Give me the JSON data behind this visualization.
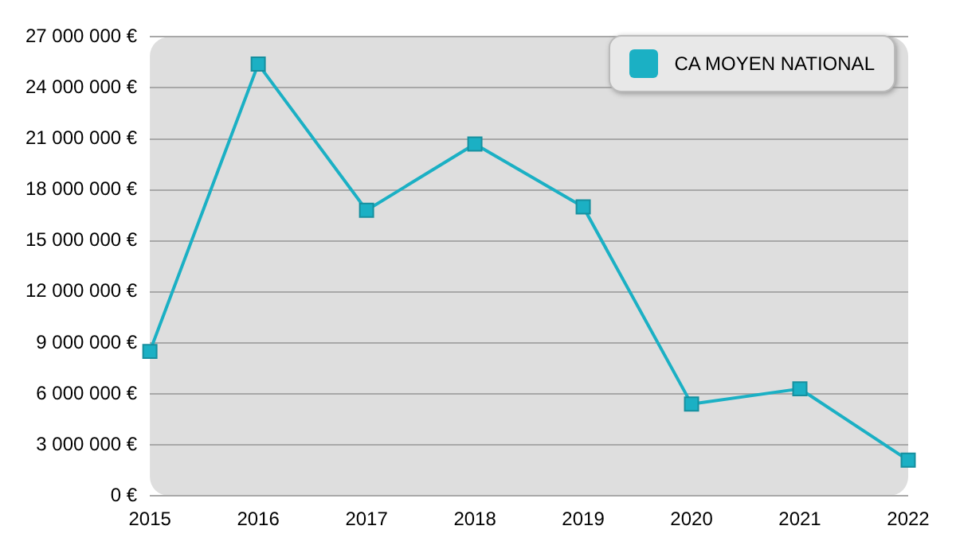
{
  "chart_data": {
    "type": "line",
    "categories": [
      "2015",
      "2016",
      "2017",
      "2018",
      "2019",
      "2020",
      "2021",
      "2022"
    ],
    "series": [
      {
        "name": "CA MOYEN NATIONAL",
        "color": "#1bb0c4",
        "values": [
          8500000,
          25400000,
          16800000,
          20700000,
          17000000,
          5400000,
          6300000,
          2100000
        ]
      }
    ],
    "ylim": [
      0,
      27000000
    ],
    "yticks": [
      {
        "value": 0,
        "label": "0 €"
      },
      {
        "value": 3000000,
        "label": "3 000 000 €"
      },
      {
        "value": 6000000,
        "label": "6 000 000 €"
      },
      {
        "value": 9000000,
        "label": "9 000 000 €"
      },
      {
        "value": 12000000,
        "label": "12 000 000 €"
      },
      {
        "value": 15000000,
        "label": "15 000 000 €"
      },
      {
        "value": 18000000,
        "label": "18 000 000 €"
      },
      {
        "value": 21000000,
        "label": "21 000 000 €"
      },
      {
        "value": 24000000,
        "label": "24 000 000 €"
      },
      {
        "value": 27000000,
        "label": "27 000 000 €"
      }
    ],
    "grid": "y",
    "legend": "top right",
    "marker": "square",
    "line_style": "solid"
  }
}
